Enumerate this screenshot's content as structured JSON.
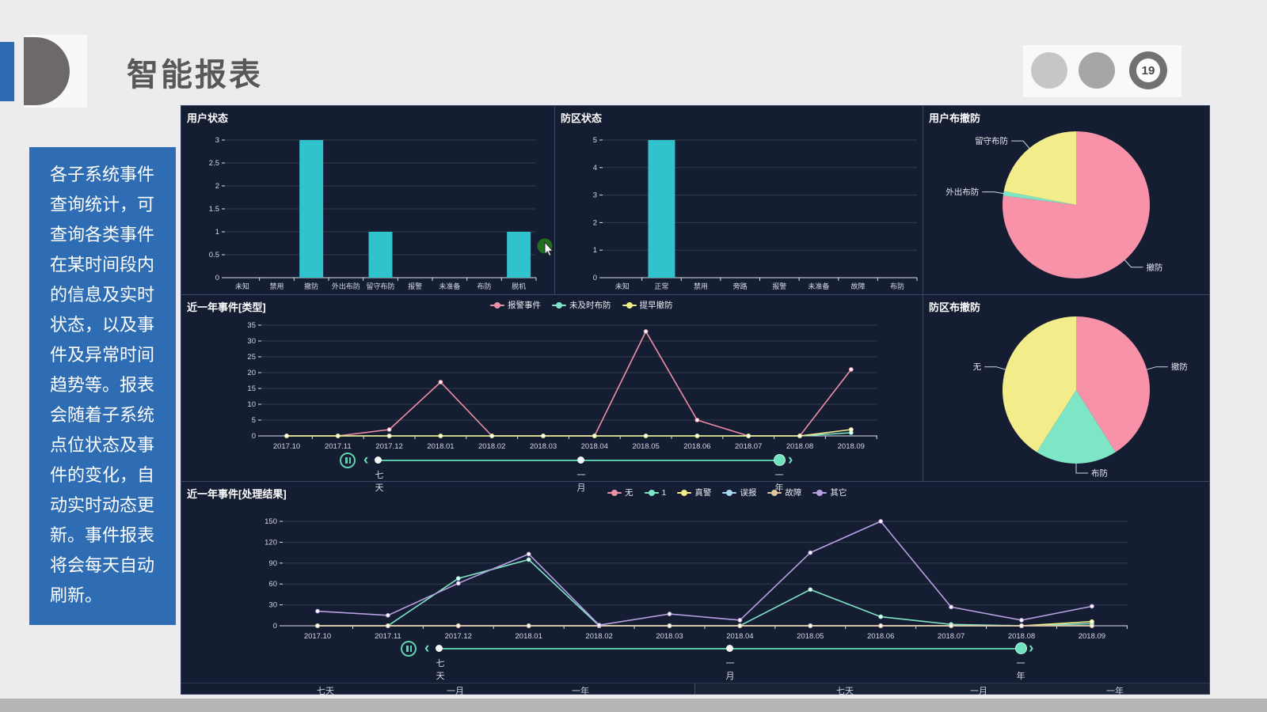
{
  "slide": {
    "title": "智能报表",
    "page_number": "19",
    "note_text": "各子系统事件查询统计，可查询各类事件在某时间段内的信息及实时状态，以及事件及异常时间趋势等。报表会随着子系统点位状态及事件的变化，自动实时动态更新。事件报表将会每天自动刷新。"
  },
  "colors": {
    "accent_blue": "#2d6cb5",
    "note_bg": "#2e6cb4",
    "dashboard_bg": "#151d32",
    "bar_cyan": "#30c3ce",
    "pink": "#ee8fa8",
    "teal": "#7ee6c6",
    "yellow": "#f2ec8a",
    "light_blue": "#a8d8f0",
    "tan": "#e2c49f",
    "purple": "#b79fe0",
    "slider_teal": "#5fd0ae"
  },
  "timeline": {
    "labels": [
      "七天",
      "一月",
      "一年"
    ],
    "selected": "一年"
  },
  "footer": {
    "labels": [
      "七天",
      "一月",
      "一年",
      "七天",
      "一月",
      "一年"
    ]
  },
  "chart_data": [
    {
      "type": "bar",
      "title": "用户状态",
      "categories": [
        "未知",
        "禁用",
        "撤防",
        "外出布防",
        "留守布防",
        "报警",
        "未准备",
        "布防",
        "脱机"
      ],
      "values": [
        0,
        0,
        3,
        0,
        1,
        0,
        0,
        0,
        1
      ],
      "ylim": [
        0,
        3
      ],
      "ytick_step": 0.5,
      "grid": true,
      "bar_color": "#30c3ce"
    },
    {
      "type": "bar",
      "title": "防区状态",
      "categories": [
        "未知",
        "正常",
        "禁用",
        "旁路",
        "报警",
        "未准备",
        "故障",
        "布防"
      ],
      "values": [
        0,
        5,
        0,
        0,
        0,
        0,
        0,
        0
      ],
      "ylim": [
        0,
        5
      ],
      "ytick_step": 1,
      "grid": true,
      "bar_color": "#30c3ce"
    },
    {
      "type": "pie",
      "title": "用户布撤防",
      "slices": [
        {
          "label": "撤防",
          "value": 77,
          "color": "#f792a9"
        },
        {
          "label": "外出布防",
          "value": 1,
          "color": "#7ee6c6"
        },
        {
          "label": "留守布防",
          "value": 22,
          "color": "#f2ec8a"
        }
      ]
    },
    {
      "type": "line",
      "title": "近一年事件[类型]",
      "x": [
        "2017.10",
        "2017.11",
        "2017.12",
        "2018.01",
        "2018.02",
        "2018.03",
        "2018.04",
        "2018.05",
        "2018.06",
        "2018.07",
        "2018.08",
        "2018.09"
      ],
      "ylim": [
        0,
        35
      ],
      "ytick_step": 5,
      "grid": true,
      "legend_position": "top-center",
      "series": [
        {
          "name": "报警事件",
          "color": "#ee8fa8",
          "values": [
            0,
            0,
            2,
            17,
            0,
            0,
            0,
            33,
            5,
            0,
            0,
            21
          ]
        },
        {
          "name": "未及时布防",
          "color": "#7ee6c6",
          "values": [
            0,
            0,
            0,
            0,
            0,
            0,
            0,
            0,
            0,
            0,
            0,
            1
          ]
        },
        {
          "name": "提早撤防",
          "color": "#f2ec8a",
          "values": [
            0,
            0,
            0,
            0,
            0,
            0,
            0,
            0,
            0,
            0,
            0,
            2
          ]
        }
      ]
    },
    {
      "type": "pie",
      "title": "防区布撤防",
      "slices": [
        {
          "label": "撤防",
          "value": 41,
          "color": "#f792a9"
        },
        {
          "label": "布防",
          "value": 18,
          "color": "#7ee6c6"
        },
        {
          "label": "无",
          "value": 41,
          "color": "#f2ec8a"
        }
      ]
    },
    {
      "type": "line",
      "title": "近一年事件[处理结果]",
      "x": [
        "2017.10",
        "2017.11",
        "2017.12",
        "2018.01",
        "2018.02",
        "2018.03",
        "2018.04",
        "2018.05",
        "2018.06",
        "2018.07",
        "2018.08",
        "2018.09"
      ],
      "ylim": [
        0,
        150
      ],
      "ytick_step": 30,
      "grid": true,
      "legend_position": "top-right",
      "series": [
        {
          "name": "无",
          "color": "#ee8fa8",
          "values": [
            0,
            0,
            0,
            0,
            0,
            0,
            0,
            0,
            0,
            0,
            0,
            0
          ]
        },
        {
          "name": "1",
          "color": "#7ee6c6",
          "values": [
            0,
            0,
            68,
            95,
            0,
            0,
            0,
            52,
            13,
            2,
            0,
            3
          ]
        },
        {
          "name": "真警",
          "color": "#f2ec8a",
          "values": [
            0,
            0,
            0,
            0,
            0,
            0,
            0,
            0,
            0,
            0,
            0,
            6
          ]
        },
        {
          "name": "误报",
          "color": "#a8d8f0",
          "values": [
            0,
            0,
            0,
            0,
            0,
            0,
            0,
            0,
            0,
            0,
            0,
            0
          ]
        },
        {
          "name": "故障",
          "color": "#e2c49f",
          "values": [
            0,
            0,
            0,
            0,
            0,
            0,
            0,
            0,
            0,
            0,
            0,
            0
          ]
        },
        {
          "name": "其它",
          "color": "#b79fe0",
          "values": [
            21,
            15,
            61,
            103,
            1,
            17,
            8,
            105,
            150,
            27,
            8,
            28
          ]
        }
      ]
    }
  ]
}
